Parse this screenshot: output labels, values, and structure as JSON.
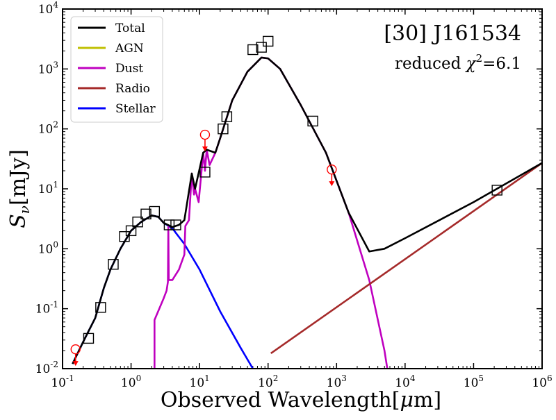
{
  "chart_data": {
    "type": "line",
    "scale": {
      "x": "log",
      "y": "log"
    },
    "xlim": [
      0.1,
      1000000
    ],
    "ylim": [
      0.01,
      10000
    ],
    "xlabel": {
      "main": "Observed Wavelength",
      "unit_open": "[",
      "unit_mu": "μ",
      "unit_rest": "m]"
    },
    "ylabel": {
      "sym": "S",
      "sub": "ν",
      "unit": "[mJy]"
    },
    "title": "[30] J161534",
    "subtitle": {
      "prefix": "reduced ",
      "chi": "χ",
      "sup": "2",
      "suffix": "=6.1"
    },
    "x_tick_exponents": [
      "-1",
      "0",
      "1",
      "2",
      "3",
      "4",
      "5",
      "6"
    ],
    "y_tick_exponents": [
      "-2",
      "-1",
      "0",
      "1",
      "2",
      "3",
      "4"
    ],
    "tick_base": "10",
    "legend": [
      "Total",
      "AGN",
      "Dust",
      "Radio",
      "Stellar"
    ],
    "legend_position": "upper-left",
    "colors": {
      "Total": "#000000",
      "AGN": "#bfbf00",
      "Dust": "#bf00bf",
      "Radio": "#a52a2a",
      "Stellar": "#0000ff",
      "upper_limit": "#ff0000"
    },
    "series": [
      {
        "name": "Stellar",
        "points": [
          [
            0.14,
            0.012
          ],
          [
            0.2,
            0.028
          ],
          [
            0.3,
            0.07
          ],
          [
            0.4,
            0.22
          ],
          [
            0.5,
            0.45
          ],
          [
            0.7,
            1.0
          ],
          [
            1.0,
            2.0
          ],
          [
            1.4,
            2.8
          ],
          [
            2.0,
            3.6
          ],
          [
            2.5,
            3.4
          ],
          [
            3.0,
            2.7
          ],
          [
            4.0,
            2.2
          ],
          [
            6.0,
            1.2
          ],
          [
            10.0,
            0.45
          ],
          [
            20.0,
            0.09
          ],
          [
            40.0,
            0.022
          ],
          [
            60.0,
            0.01
          ]
        ]
      },
      {
        "name": "Dust",
        "points": [
          [
            2.2,
            0.01
          ],
          [
            2.2,
            0.065
          ],
          [
            3.0,
            0.15
          ],
          [
            3.3,
            0.2
          ],
          [
            3.45,
            0.28
          ],
          [
            3.5,
            2.3
          ],
          [
            3.55,
            0.3
          ],
          [
            4.0,
            0.3
          ],
          [
            5.0,
            0.45
          ],
          [
            6.0,
            0.8
          ],
          [
            6.2,
            2.4
          ],
          [
            7.0,
            3.0
          ],
          [
            7.7,
            18
          ],
          [
            8.3,
            8
          ],
          [
            8.6,
            10
          ],
          [
            9.7,
            6
          ],
          [
            11.3,
            40
          ],
          [
            12.0,
            20
          ],
          [
            12.7,
            45
          ],
          [
            14.0,
            25
          ],
          [
            17.0,
            40
          ],
          [
            20.0,
            70
          ],
          [
            30.0,
            300
          ],
          [
            50.0,
            900
          ],
          [
            80.0,
            1550
          ],
          [
            100.0,
            1500
          ],
          [
            150.0,
            1000
          ],
          [
            300.0,
            250
          ],
          [
            700.0,
            40
          ],
          [
            1500.0,
            4
          ],
          [
            3000.0,
            0.3
          ],
          [
            5000.0,
            0.02
          ],
          [
            5500.0,
            0.01
          ]
        ]
      },
      {
        "name": "Radio",
        "points": [
          [
            110,
            0.018
          ],
          [
            1000000,
            27
          ]
        ]
      },
      {
        "name": "Total",
        "points": [
          [
            0.14,
            0.012
          ],
          [
            0.2,
            0.028
          ],
          [
            0.3,
            0.07
          ],
          [
            0.4,
            0.22
          ],
          [
            0.5,
            0.45
          ],
          [
            0.7,
            1.0
          ],
          [
            1.0,
            2.0
          ],
          [
            1.4,
            2.8
          ],
          [
            2.0,
            3.6
          ],
          [
            2.5,
            3.4
          ],
          [
            3.0,
            2.7
          ],
          [
            4.0,
            2.3
          ],
          [
            5.0,
            2.5
          ],
          [
            6.0,
            3.0
          ],
          [
            7.7,
            18
          ],
          [
            8.6,
            10
          ],
          [
            11.3,
            40
          ],
          [
            12.7,
            45
          ],
          [
            17.0,
            40
          ],
          [
            20.0,
            70
          ],
          [
            30.0,
            300
          ],
          [
            50.0,
            900
          ],
          [
            80.0,
            1550
          ],
          [
            100.0,
            1500
          ],
          [
            150.0,
            1000
          ],
          [
            300.0,
            250
          ],
          [
            700.0,
            40
          ],
          [
            1500.0,
            4
          ],
          [
            3000.0,
            0.9
          ],
          [
            5000.0,
            1.0
          ],
          [
            10000.0,
            1.5
          ],
          [
            100000.0,
            6
          ],
          [
            1000000.0,
            27
          ]
        ]
      }
    ],
    "observed_points": [
      [
        0.24,
        0.032
      ],
      [
        0.36,
        0.105
      ],
      [
        0.55,
        0.55
      ],
      [
        0.8,
        1.6
      ],
      [
        1.0,
        2.0
      ],
      [
        1.25,
        2.8
      ],
      [
        1.65,
        3.8
      ],
      [
        2.2,
        4.2
      ],
      [
        3.6,
        2.5
      ],
      [
        4.5,
        2.5
      ],
      [
        12.0,
        19
      ],
      [
        22.0,
        100
      ],
      [
        25.0,
        160
      ],
      [
        60.0,
        2100
      ],
      [
        80.0,
        2300
      ],
      [
        100.0,
        2900
      ],
      [
        450.0,
        135
      ],
      [
        220000.0,
        9.5
      ]
    ],
    "upper_limits": [
      [
        0.155,
        0.021
      ],
      [
        12.0,
        80
      ],
      [
        850.0,
        21
      ]
    ]
  }
}
